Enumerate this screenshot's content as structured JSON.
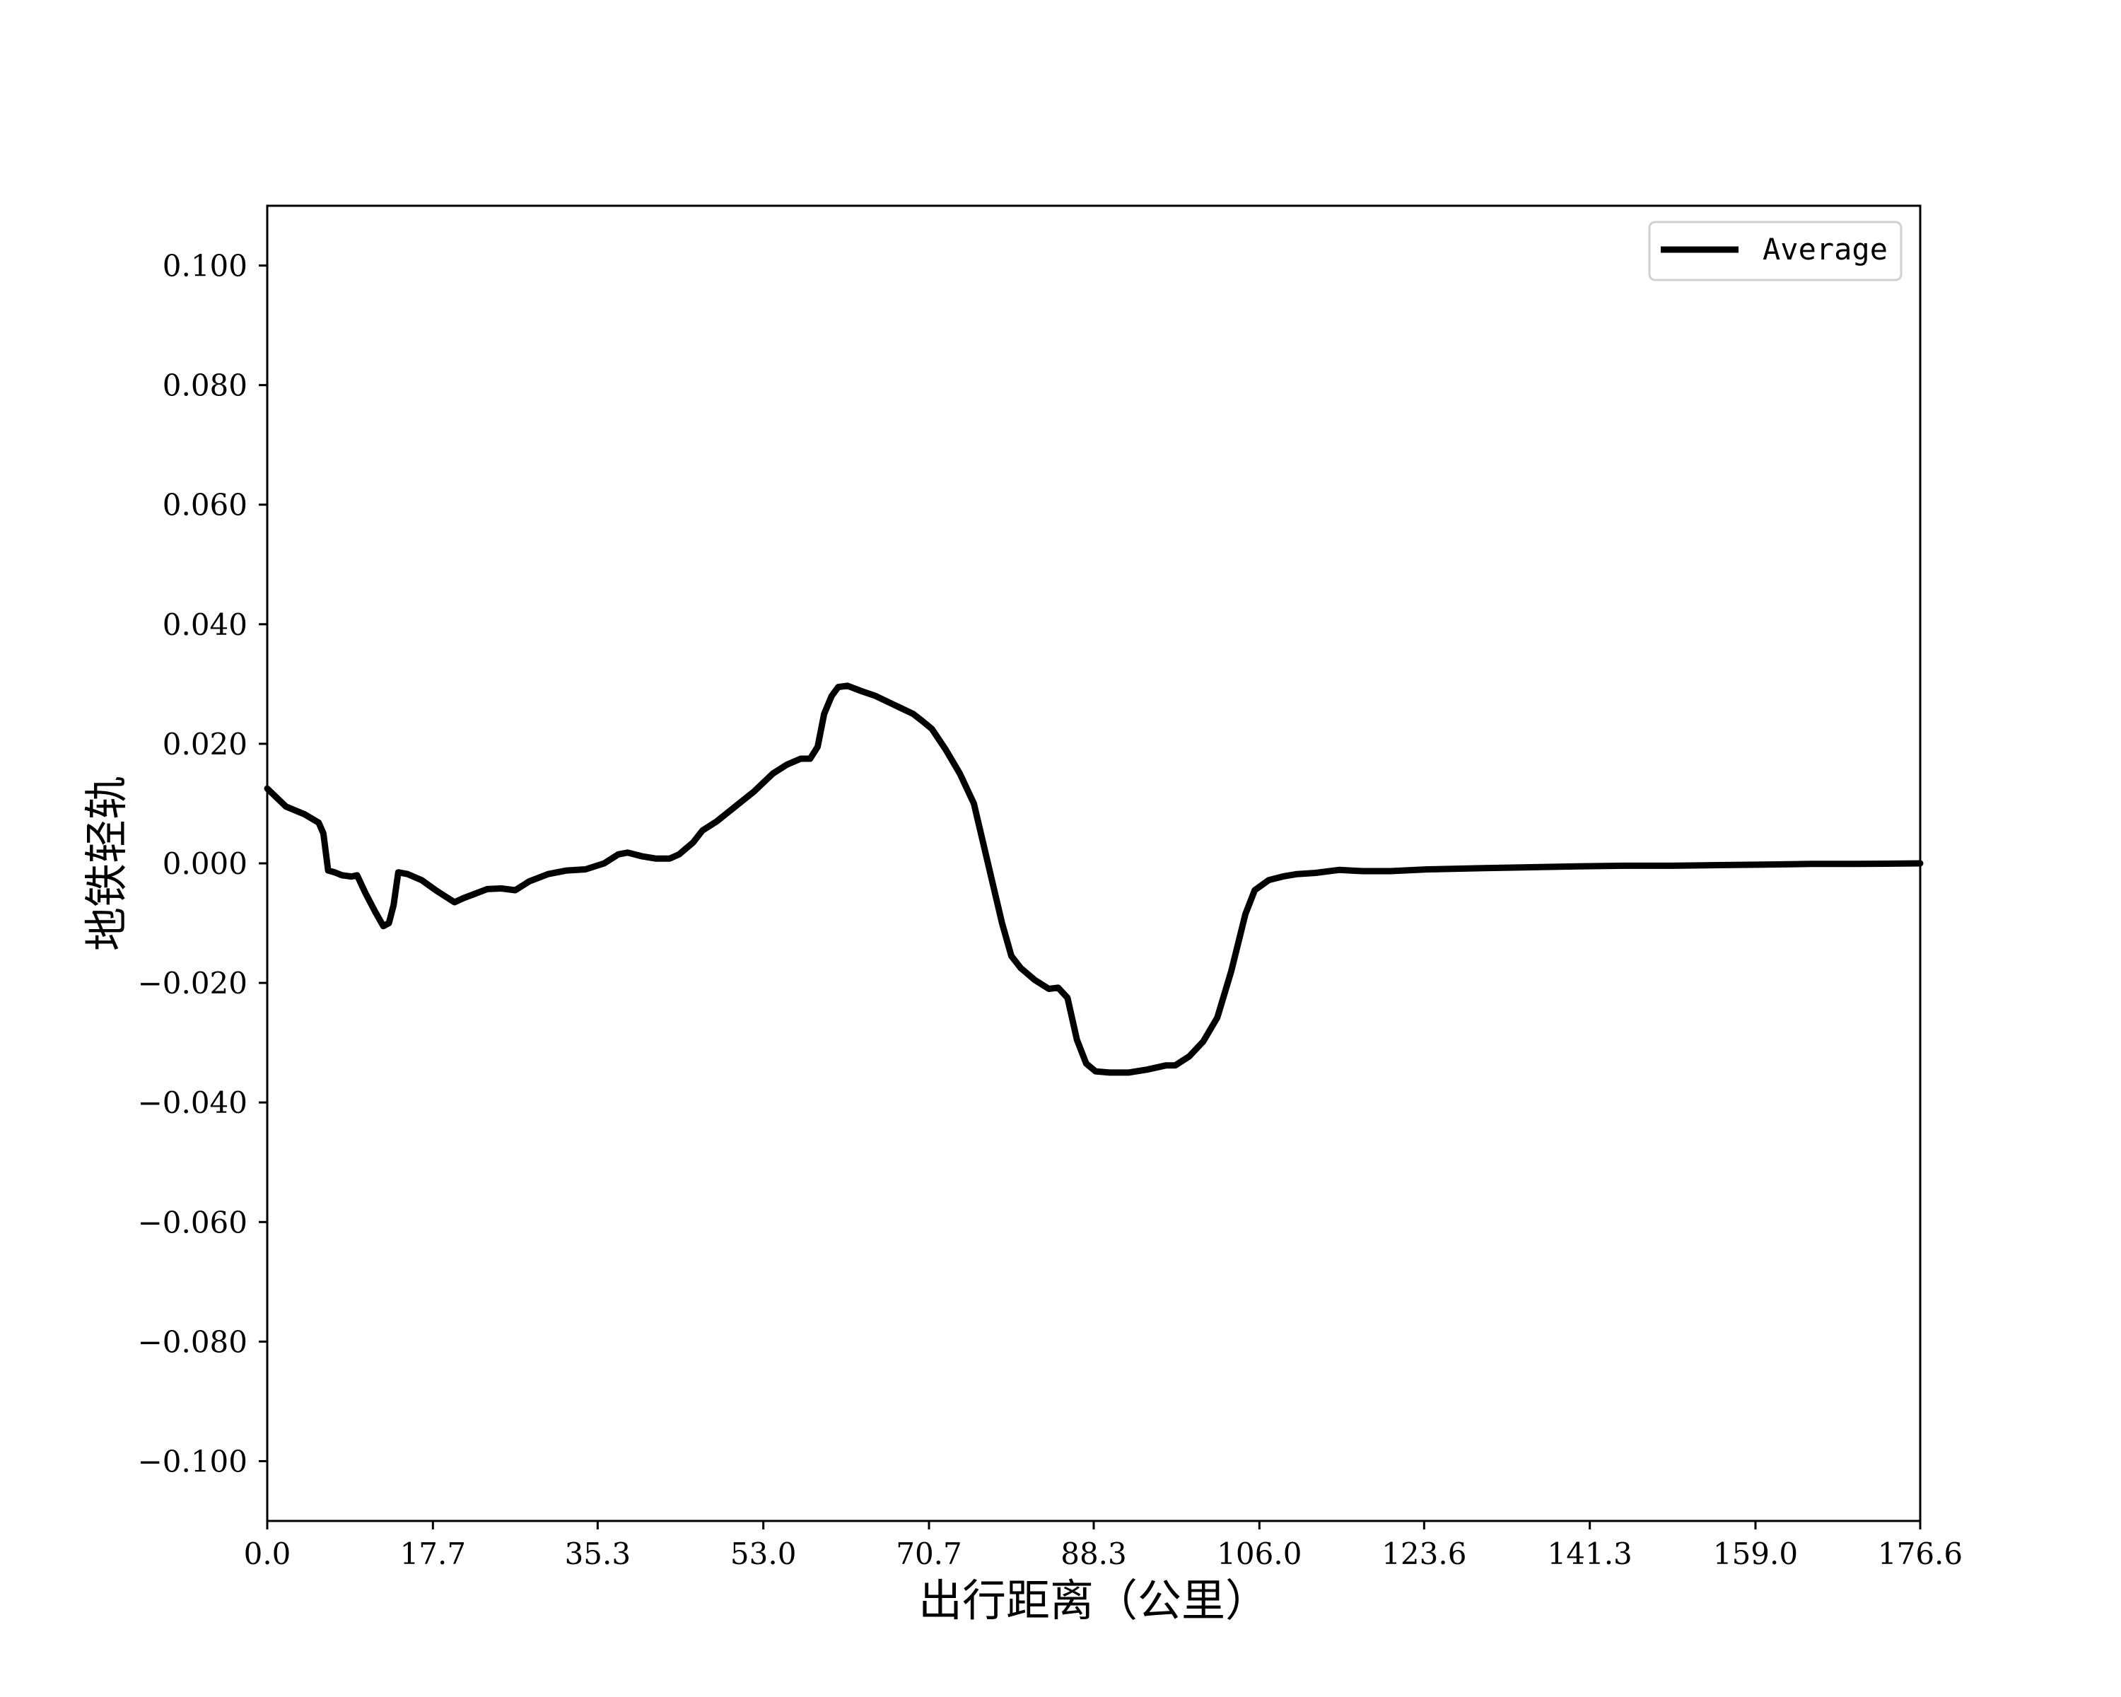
{
  "chart_data": {
    "type": "line",
    "xlabel": "出行距离（公里）",
    "ylabel": "地铁轻轨",
    "xlim": [
      0,
      176.6
    ],
    "ylim": [
      -0.11,
      0.11
    ],
    "x_ticks": [
      0.0,
      17.7,
      35.3,
      53.0,
      70.7,
      88.3,
      106.0,
      123.6,
      141.3,
      159.0,
      176.6
    ],
    "x_tick_labels": [
      "0.0",
      "17.7",
      "35.3",
      "53.0",
      "70.7",
      "88.3",
      "106.0",
      "123.6",
      "141.3",
      "159.0",
      "176.6"
    ],
    "y_ticks": [
      0.1,
      0.08,
      0.06,
      0.04,
      0.02,
      0.0,
      -0.02,
      -0.04,
      -0.06,
      -0.08,
      -0.1
    ],
    "y_tick_labels": [
      "0.100",
      "0.080",
      "0.060",
      "0.040",
      "0.020",
      "0.000",
      "−0.020",
      "−0.040",
      "−0.060",
      "−0.080",
      "−0.100"
    ],
    "legend": {
      "placement": "top-right",
      "entries": [
        "Average"
      ]
    },
    "grid": false,
    "series": [
      {
        "name": "Average",
        "color": "#000000",
        "points": [
          [
            0.0,
            0.0125
          ],
          [
            2.0,
            0.0095
          ],
          [
            4.0,
            0.0082
          ],
          [
            5.5,
            0.0068
          ],
          [
            6.0,
            0.005
          ],
          [
            6.5,
            -0.0012
          ],
          [
            7.2,
            -0.0015
          ],
          [
            8.0,
            -0.002
          ],
          [
            9.0,
            -0.0022
          ],
          [
            9.6,
            -0.002
          ],
          [
            10.5,
            -0.005
          ],
          [
            11.5,
            -0.008
          ],
          [
            12.4,
            -0.0105
          ],
          [
            13.0,
            -0.01
          ],
          [
            13.5,
            -0.007
          ],
          [
            14.0,
            -0.0015
          ],
          [
            15.0,
            -0.0018
          ],
          [
            16.5,
            -0.0028
          ],
          [
            18.0,
            -0.0045
          ],
          [
            19.0,
            -0.0055
          ],
          [
            20.0,
            -0.0065
          ],
          [
            21.0,
            -0.0058
          ],
          [
            22.0,
            -0.0052
          ],
          [
            23.5,
            -0.0043
          ],
          [
            25.0,
            -0.0042
          ],
          [
            26.5,
            -0.0045
          ],
          [
            28.0,
            -0.003
          ],
          [
            30.0,
            -0.0018
          ],
          [
            32.0,
            -0.0012
          ],
          [
            34.0,
            -0.001
          ],
          [
            36.0,
            0.0
          ],
          [
            37.5,
            0.0015
          ],
          [
            38.5,
            0.0018
          ],
          [
            40.0,
            0.0012
          ],
          [
            41.5,
            0.0008
          ],
          [
            43.0,
            0.0008
          ],
          [
            44.0,
            0.0015
          ],
          [
            45.5,
            0.0035
          ],
          [
            46.5,
            0.0055
          ],
          [
            48.0,
            0.007
          ],
          [
            50.0,
            0.0095
          ],
          [
            52.0,
            0.012
          ],
          [
            54.0,
            0.015
          ],
          [
            55.5,
            0.0165
          ],
          [
            57.0,
            0.0175
          ],
          [
            58.0,
            0.0175
          ],
          [
            58.8,
            0.0195
          ],
          [
            59.5,
            0.025
          ],
          [
            60.3,
            0.028
          ],
          [
            61.0,
            0.0295
          ],
          [
            62.0,
            0.0297
          ],
          [
            63.5,
            0.0288
          ],
          [
            65.0,
            0.028
          ],
          [
            67.0,
            0.0265
          ],
          [
            69.0,
            0.025
          ],
          [
            70.0,
            0.0238
          ],
          [
            71.0,
            0.0225
          ],
          [
            72.5,
            0.019
          ],
          [
            74.0,
            0.015
          ],
          [
            75.5,
            0.01
          ],
          [
            77.0,
            0.0
          ],
          [
            78.5,
            -0.01
          ],
          [
            79.5,
            -0.0155
          ],
          [
            80.5,
            -0.0175
          ],
          [
            82.0,
            -0.0195
          ],
          [
            83.5,
            -0.021
          ],
          [
            84.5,
            -0.0208
          ],
          [
            85.5,
            -0.0225
          ],
          [
            86.5,
            -0.0295
          ],
          [
            87.5,
            -0.0335
          ],
          [
            88.5,
            -0.0348
          ],
          [
            90.0,
            -0.035
          ],
          [
            92.0,
            -0.035
          ],
          [
            94.0,
            -0.0345
          ],
          [
            96.0,
            -0.0338
          ],
          [
            97.0,
            -0.0338
          ],
          [
            98.5,
            -0.0323
          ],
          [
            100.0,
            -0.0298
          ],
          [
            101.5,
            -0.0258
          ],
          [
            103.0,
            -0.018
          ],
          [
            104.5,
            -0.0085
          ],
          [
            105.5,
            -0.0045
          ],
          [
            107.0,
            -0.0028
          ],
          [
            108.5,
            -0.0022
          ],
          [
            110.0,
            -0.0018
          ],
          [
            112.0,
            -0.0016
          ],
          [
            114.5,
            -0.0011
          ],
          [
            117.0,
            -0.0013
          ],
          [
            120.0,
            -0.0013
          ],
          [
            124.0,
            -0.001
          ],
          [
            130.0,
            -0.0008
          ],
          [
            140.0,
            -0.0005
          ],
          [
            145.0,
            -0.0004
          ],
          [
            150.0,
            -0.0004
          ],
          [
            155.0,
            -0.0003
          ],
          [
            160.0,
            -0.0002
          ],
          [
            165.0,
            -0.0001
          ],
          [
            170.0,
            -0.0001
          ],
          [
            176.6,
            0.0
          ]
        ]
      }
    ]
  }
}
